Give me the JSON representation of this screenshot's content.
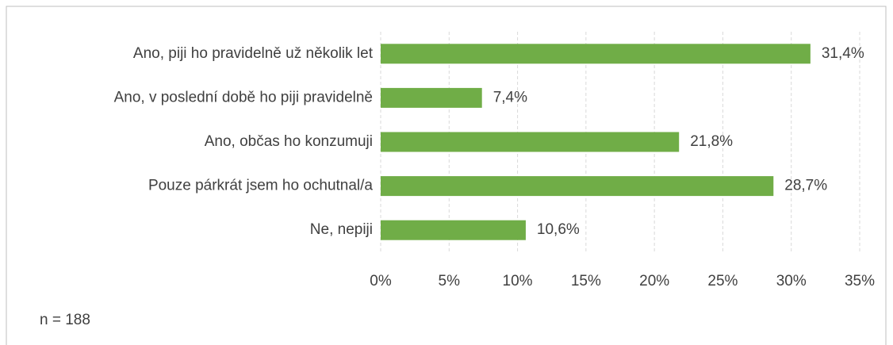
{
  "chart_data": {
    "type": "bar",
    "orientation": "horizontal",
    "categories": [
      "Ano, piji ho pravidelně už několik let",
      "Ano, v poslední době ho piji pravidelně",
      "Ano, občas ho konzumuji",
      "Pouze párkrát jsem ho ochutnal/a",
      "Ne, nepiji"
    ],
    "values": [
      31.4,
      7.4,
      21.8,
      28.7,
      10.6
    ],
    "value_labels": [
      "31,4%",
      "7,4%",
      "21,8%",
      "28,7%",
      "10,6%"
    ],
    "color": "#70ad47",
    "xlim": [
      0,
      35
    ],
    "xticks": [
      {
        "value": 0,
        "label": "0%"
      },
      {
        "value": 5,
        "label": "5%"
      },
      {
        "value": 10,
        "label": "10%"
      },
      {
        "value": 15,
        "label": "15%"
      },
      {
        "value": 20,
        "label": "20%"
      },
      {
        "value": 25,
        "label": "25%"
      },
      {
        "value": 30,
        "label": "30%"
      },
      {
        "value": 35,
        "label": "35%"
      }
    ],
    "grid": true,
    "annotation": "n = 188"
  }
}
